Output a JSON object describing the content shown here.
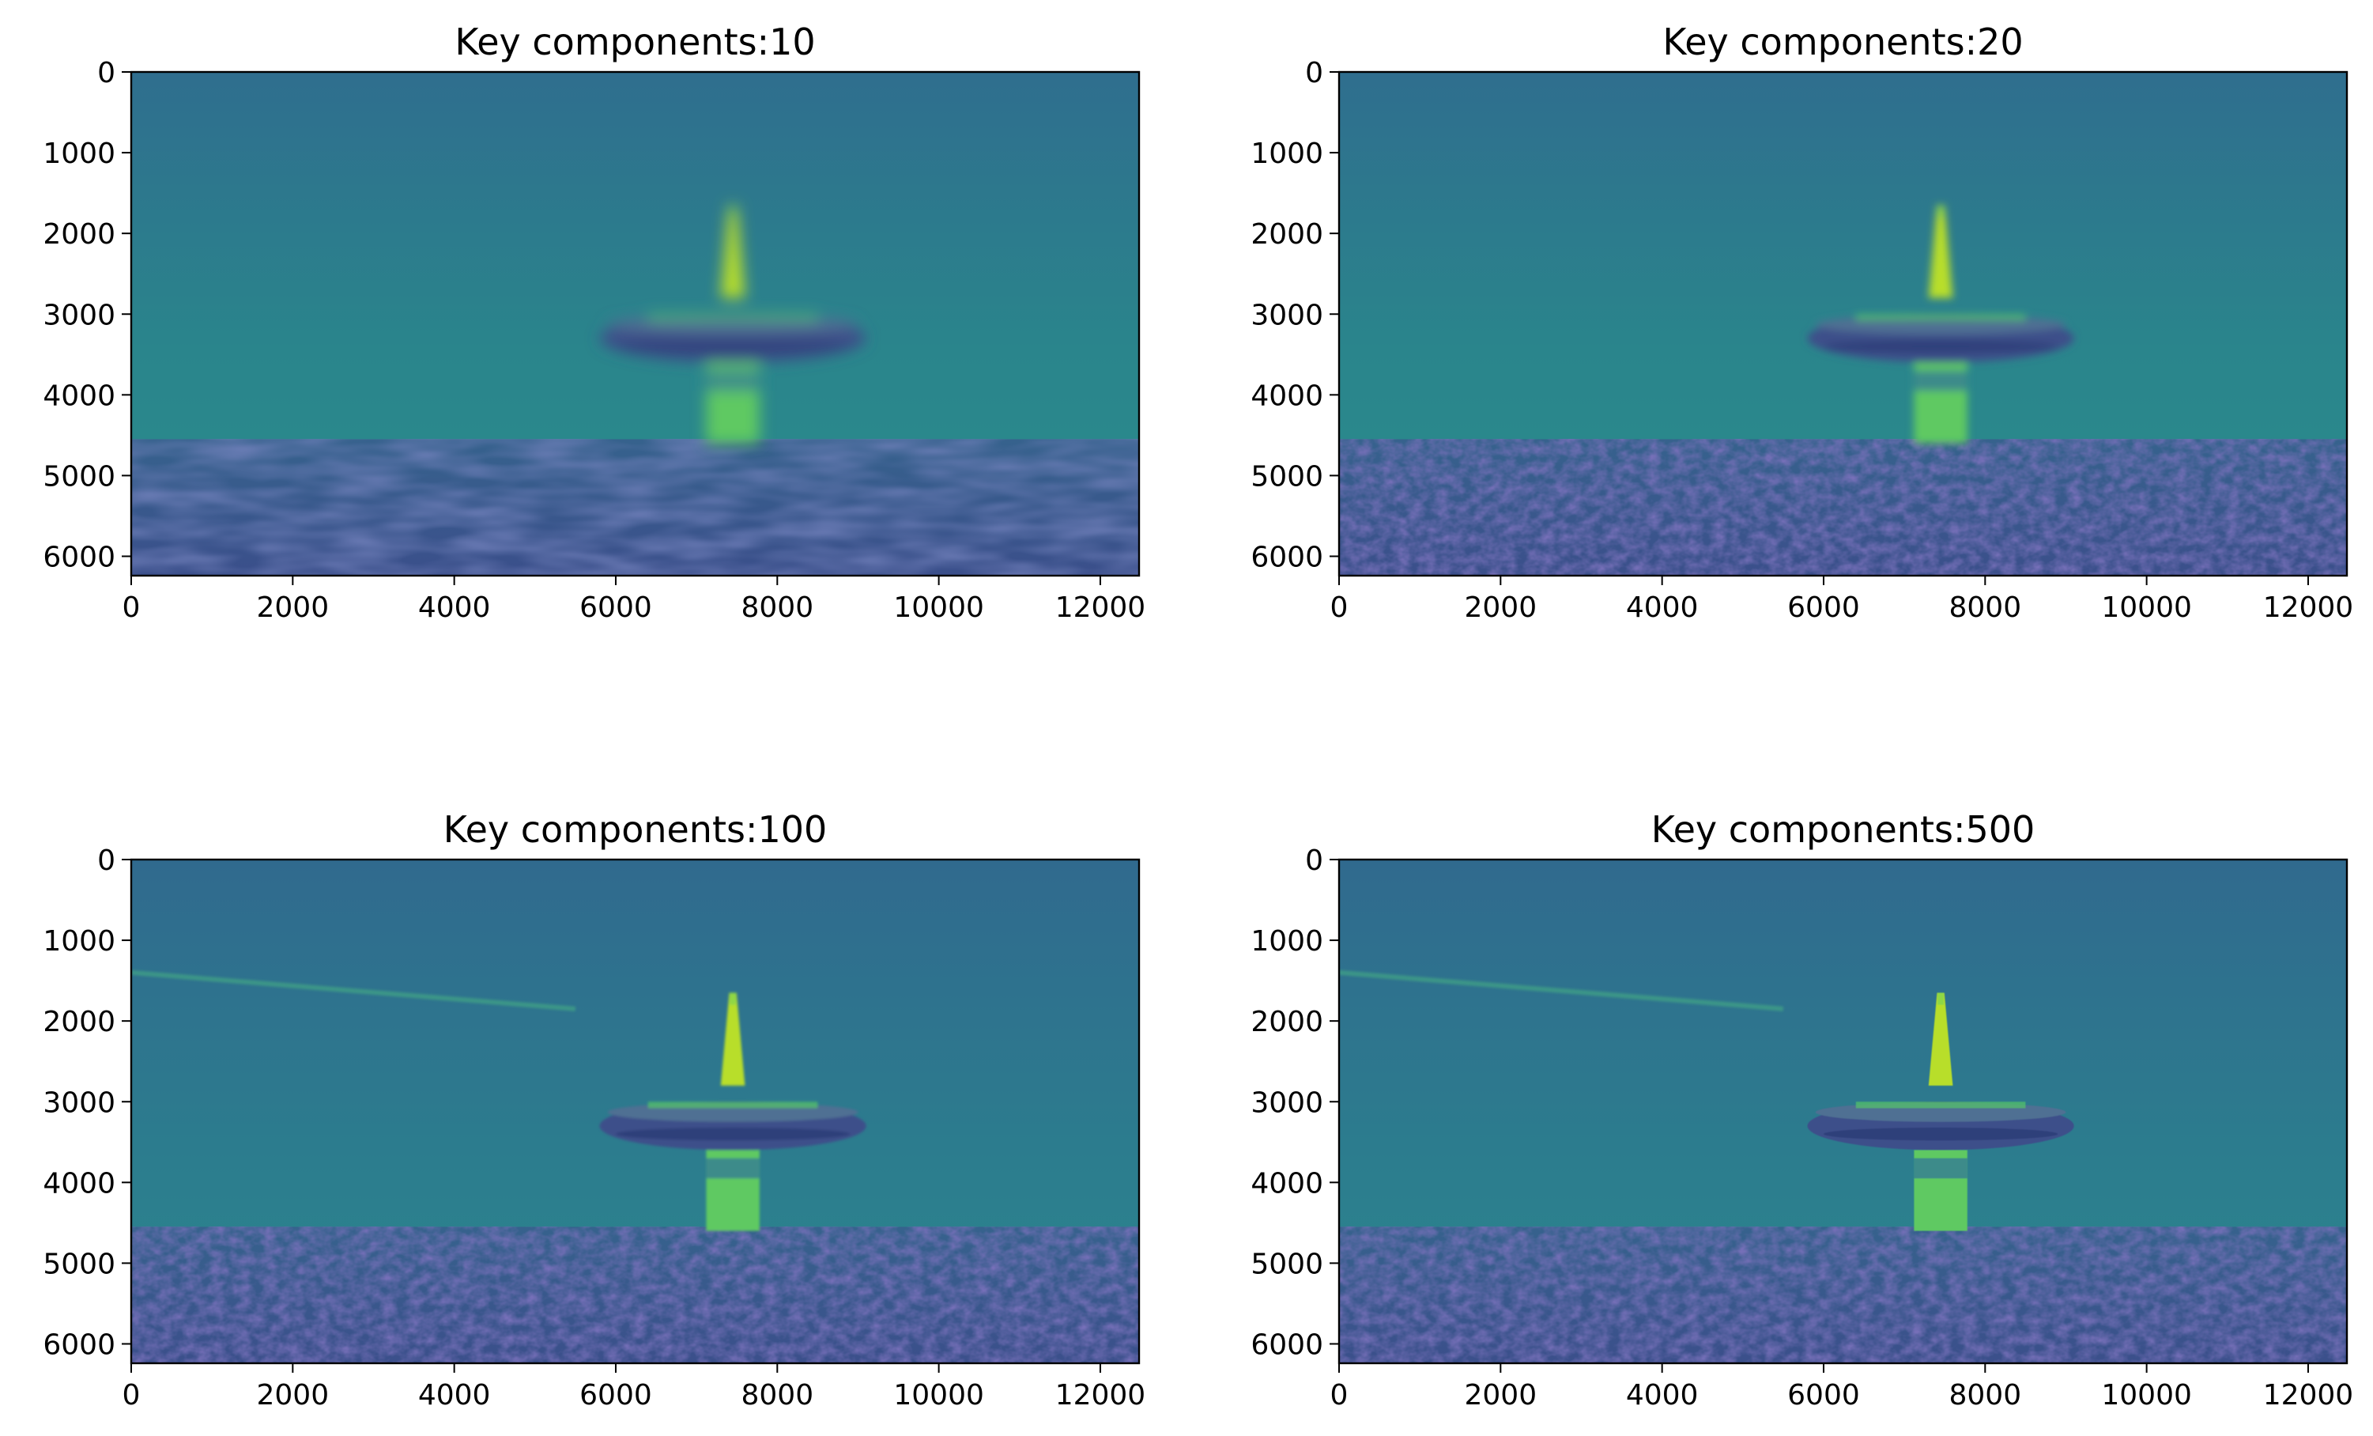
{
  "chart_data": [
    {
      "type": "heatmap",
      "title": "Key components:10",
      "colormap": "viridis",
      "xlim": [
        0,
        12480
      ],
      "ylim": [
        6240,
        0
      ],
      "xticks": [
        0,
        2000,
        4000,
        6000,
        8000,
        10000,
        12000
      ],
      "yticks": [
        0,
        1000,
        2000,
        3000,
        4000,
        5000,
        6000
      ],
      "content": "low-rank SVD reconstruction of a tower image (blurry)"
    },
    {
      "type": "heatmap",
      "title": "Key components:20",
      "colormap": "viridis",
      "xlim": [
        0,
        12480
      ],
      "ylim": [
        6240,
        0
      ],
      "xticks": [
        0,
        2000,
        4000,
        6000,
        8000,
        10000,
        12000
      ],
      "yticks": [
        0,
        1000,
        2000,
        3000,
        4000,
        5000,
        6000
      ],
      "content": "low-rank SVD reconstruction of a tower image"
    },
    {
      "type": "heatmap",
      "title": "Key components:100",
      "colormap": "viridis",
      "xlim": [
        0,
        12480
      ],
      "ylim": [
        6240,
        0
      ],
      "xticks": [
        0,
        2000,
        4000,
        6000,
        8000,
        10000,
        12000
      ],
      "yticks": [
        0,
        1000,
        2000,
        3000,
        4000,
        5000,
        6000
      ],
      "content": "SVD reconstruction of a tower image (sharper)"
    },
    {
      "type": "heatmap",
      "title": "Key components:500",
      "colormap": "viridis",
      "xlim": [
        0,
        12480
      ],
      "ylim": [
        6240,
        0
      ],
      "xticks": [
        0,
        2000,
        4000,
        6000,
        8000,
        10000,
        12000
      ],
      "yticks": [
        0,
        1000,
        2000,
        3000,
        4000,
        5000,
        6000
      ],
      "content": "SVD reconstruction of a tower image (sharpest)"
    }
  ],
  "colors": {
    "sky_top": "#2f6e8e",
    "sky_mid": "#2a8a8b",
    "ground_dark": "#3a4d8c",
    "ground_mid": "#35628d",
    "tower_bright": "#b8de29",
    "tower_mid": "#5ec962",
    "disk": "#3d4f8a",
    "spine": "#000000"
  }
}
